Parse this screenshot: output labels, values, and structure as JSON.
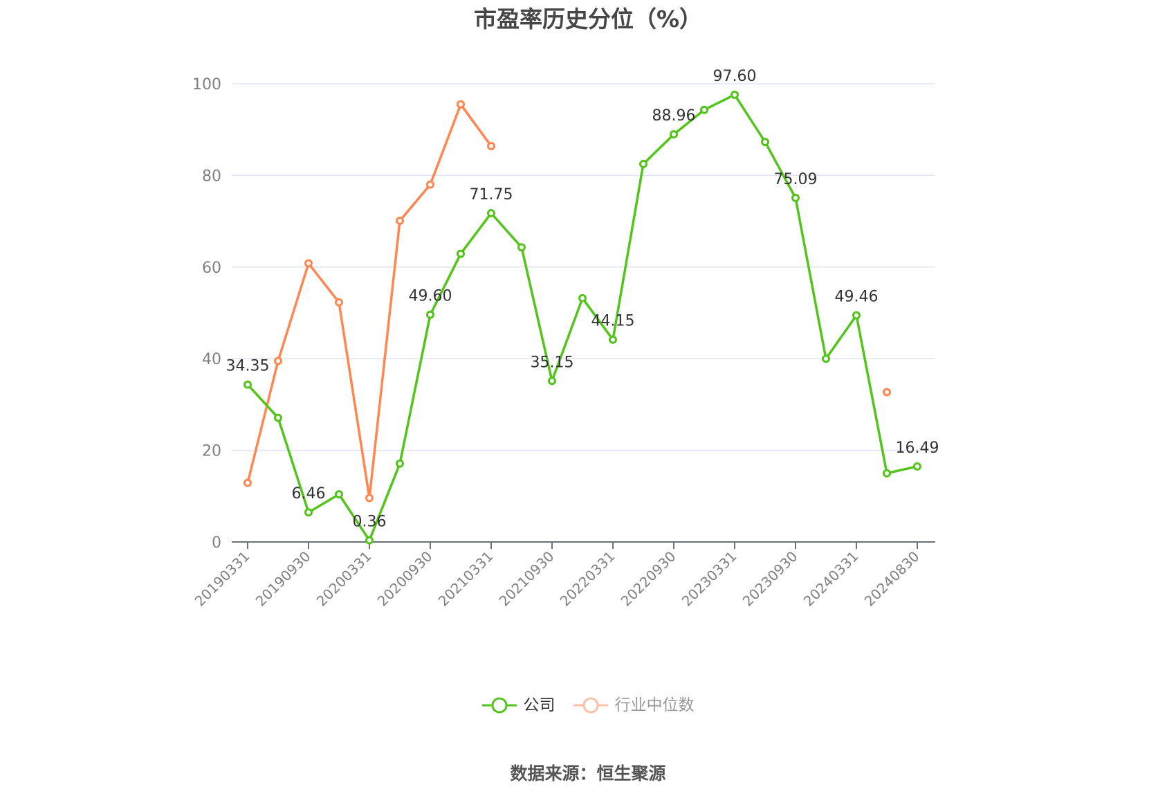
{
  "title": "市盈率历史分位（%）",
  "source_label": "数据来源：恒生聚源",
  "legend": {
    "company": "公司",
    "industry": "行业中位数"
  },
  "colors": {
    "company": "#52c41a",
    "industry": "#ff8650",
    "industry_legend_faded": "#ffbfa6",
    "grid": "#e0e3ef",
    "axis": "#6e7079"
  },
  "chart_data": {
    "type": "line",
    "title": "市盈率历史分位（%）",
    "xlabel": "",
    "ylabel": "",
    "ylim": [
      0,
      100
    ],
    "yticks": [
      0,
      20,
      40,
      60,
      80,
      100
    ],
    "grid": true,
    "legend_position": "bottom",
    "categories": [
      "20190331",
      "20190630",
      "20190930",
      "20191231",
      "20200331",
      "20200630",
      "20200930",
      "20201231",
      "20210331",
      "20210630",
      "20210930",
      "20211231",
      "20220331",
      "20220630",
      "20220930",
      "20221231",
      "20230331",
      "20230630",
      "20230930",
      "20231231",
      "20240331",
      "20240630",
      "20240830"
    ],
    "xtick_labels": [
      "20190331",
      "20190930",
      "20200331",
      "20200930",
      "20210331",
      "20210930",
      "20220331",
      "20220930",
      "20230331",
      "20230930",
      "20240331",
      "20240830"
    ],
    "series": [
      {
        "name": "公司",
        "values": [
          34.35,
          27.1,
          6.46,
          10.4,
          0.36,
          17.1,
          49.6,
          62.9,
          71.75,
          64.3,
          35.15,
          53.2,
          44.15,
          82.5,
          88.96,
          94.3,
          97.6,
          87.3,
          75.09,
          40.0,
          49.46,
          15.0,
          16.49
        ],
        "labels": [
          "34.35",
          null,
          "6.46",
          null,
          "0.36",
          null,
          "49.60",
          null,
          "71.75",
          null,
          "35.15",
          null,
          "44.15",
          null,
          "88.96",
          null,
          "97.60",
          null,
          "75.09",
          null,
          "49.46",
          null,
          "16.49"
        ]
      },
      {
        "name": "行业中位数",
        "values": [
          12.9,
          39.5,
          60.8,
          52.3,
          9.6,
          70.1,
          78.0,
          95.5,
          86.4,
          null,
          null,
          null,
          null,
          null,
          null,
          null,
          null,
          null,
          null,
          null,
          null,
          32.7,
          null
        ]
      }
    ]
  }
}
